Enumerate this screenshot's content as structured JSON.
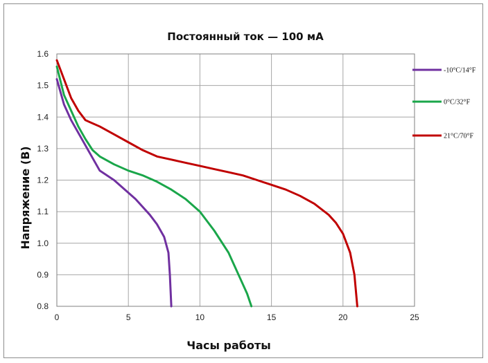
{
  "chart_data": {
    "type": "line",
    "title": "Постоянный ток — 100 мА",
    "xlabel": "Часы работы",
    "ylabel": "Напряжение (В)",
    "xlim": [
      0,
      25
    ],
    "ylim": [
      0.8,
      1.6
    ],
    "x_ticks": [
      "0",
      "5",
      "10",
      "15",
      "20",
      "25"
    ],
    "y_ticks": [
      "0.8",
      "0.9",
      "1.0",
      "1.1",
      "1.2",
      "1.3",
      "1.4",
      "1.5",
      "1.6"
    ],
    "grid": true,
    "legend_position": "right",
    "series": [
      {
        "name": "-10°C/14°F",
        "color": "#7030a0",
        "points": [
          [
            0,
            1.52
          ],
          [
            0.5,
            1.44
          ],
          [
            1,
            1.39
          ],
          [
            1.5,
            1.35
          ],
          [
            2,
            1.31
          ],
          [
            2.5,
            1.27
          ],
          [
            3,
            1.23
          ],
          [
            3.5,
            1.215
          ],
          [
            4,
            1.2
          ],
          [
            4.5,
            1.18
          ],
          [
            5,
            1.16
          ],
          [
            5.5,
            1.14
          ],
          [
            6,
            1.115
          ],
          [
            6.5,
            1.09
          ],
          [
            7,
            1.06
          ],
          [
            7.5,
            1.02
          ],
          [
            7.8,
            0.97
          ],
          [
            7.9,
            0.9
          ],
          [
            7.95,
            0.85
          ],
          [
            8,
            0.8
          ]
        ]
      },
      {
        "name": "0°C/32°F",
        "color": "#1aa64a",
        "points": [
          [
            0,
            1.56
          ],
          [
            0.5,
            1.47
          ],
          [
            1,
            1.42
          ],
          [
            1.5,
            1.37
          ],
          [
            2,
            1.33
          ],
          [
            2.5,
            1.295
          ],
          [
            3,
            1.275
          ],
          [
            4,
            1.25
          ],
          [
            5,
            1.23
          ],
          [
            6,
            1.215
          ],
          [
            7,
            1.195
          ],
          [
            8,
            1.17
          ],
          [
            9,
            1.14
          ],
          [
            10,
            1.1
          ],
          [
            11,
            1.04
          ],
          [
            12,
            0.97
          ],
          [
            12.8,
            0.89
          ],
          [
            13.3,
            0.84
          ],
          [
            13.6,
            0.8
          ]
        ]
      },
      {
        "name": "21°C/70°F",
        "color": "#c00000",
        "points": [
          [
            0,
            1.58
          ],
          [
            0.5,
            1.52
          ],
          [
            1,
            1.46
          ],
          [
            1.5,
            1.42
          ],
          [
            2,
            1.39
          ],
          [
            3,
            1.37
          ],
          [
            4,
            1.345
          ],
          [
            5,
            1.32
          ],
          [
            6,
            1.295
          ],
          [
            7,
            1.275
          ],
          [
            8,
            1.265
          ],
          [
            9,
            1.255
          ],
          [
            10,
            1.245
          ],
          [
            11,
            1.235
          ],
          [
            12,
            1.225
          ],
          [
            13,
            1.215
          ],
          [
            14,
            1.2
          ],
          [
            15,
            1.185
          ],
          [
            16,
            1.17
          ],
          [
            17,
            1.15
          ],
          [
            18,
            1.125
          ],
          [
            19,
            1.09
          ],
          [
            19.5,
            1.065
          ],
          [
            20,
            1.03
          ],
          [
            20.5,
            0.97
          ],
          [
            20.8,
            0.9
          ],
          [
            21,
            0.8
          ]
        ]
      }
    ]
  }
}
